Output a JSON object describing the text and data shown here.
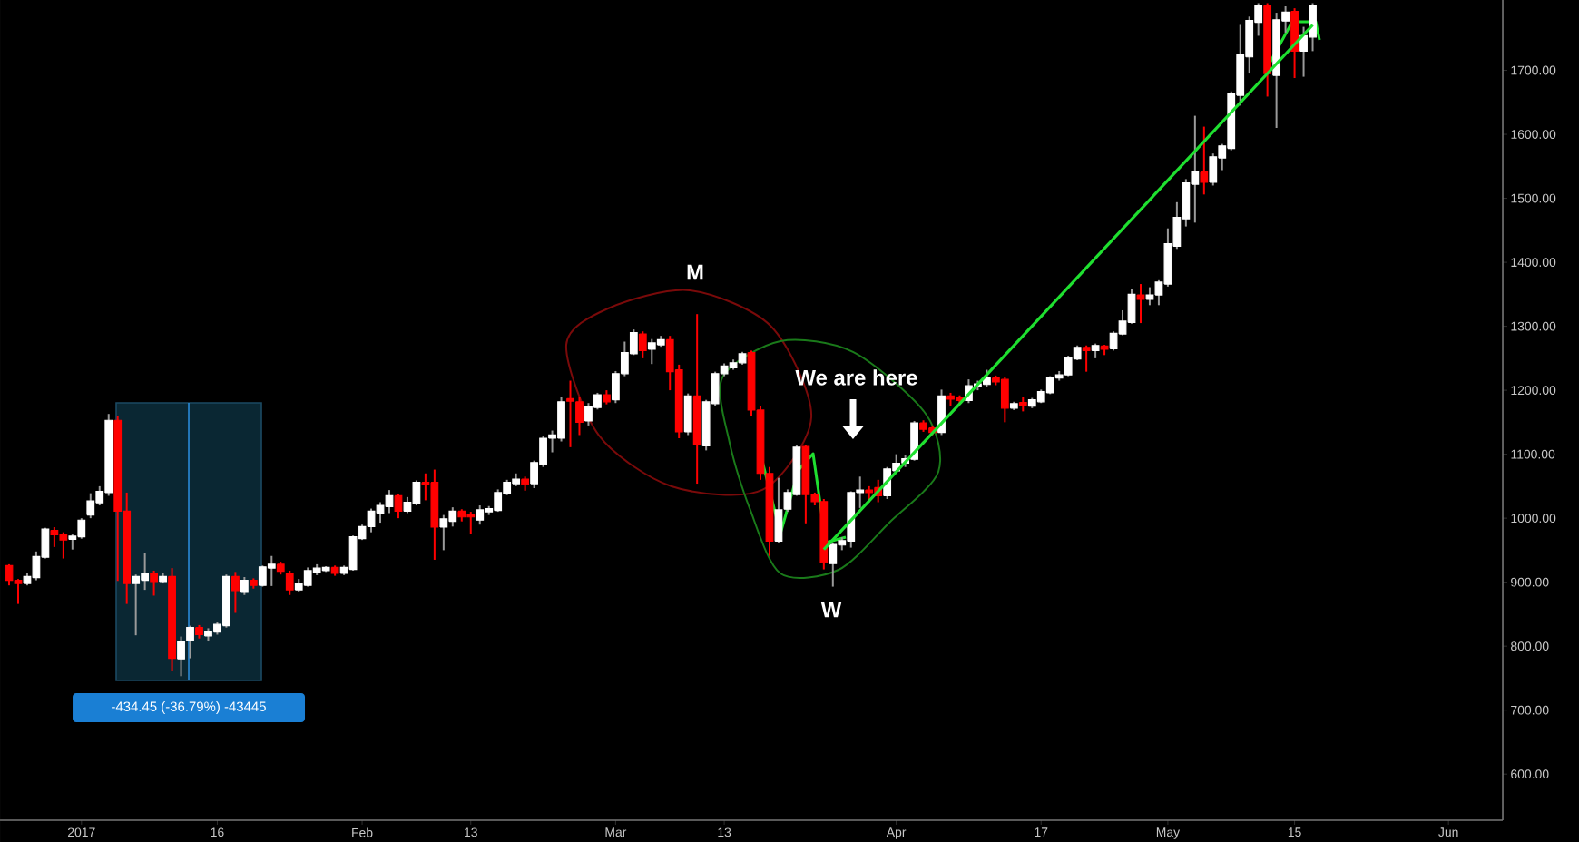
{
  "chart_data": {
    "type": "candlestick",
    "xlim": [
      "2016-12-23",
      "2017-06-07"
    ],
    "ylim": [
      528,
      1810
    ],
    "xticks": [
      {
        "value": "2017-01-01",
        "label": "2017"
      },
      {
        "value": "2017-01-16",
        "label": "16"
      },
      {
        "value": "2017-02-01",
        "label": "Feb"
      },
      {
        "value": "2017-02-13",
        "label": "13"
      },
      {
        "value": "2017-03-01",
        "label": "Mar"
      },
      {
        "value": "2017-03-13",
        "label": "13"
      },
      {
        "value": "2017-04-01",
        "label": "Apr"
      },
      {
        "value": "2017-04-17",
        "label": "17"
      },
      {
        "value": "2017-05-01",
        "label": "May"
      },
      {
        "value": "2017-05-15",
        "label": "15"
      },
      {
        "value": "2017-06-01",
        "label": "Jun"
      }
    ],
    "yticks": [
      {
        "value": 600,
        "label": "600.00"
      },
      {
        "value": 700,
        "label": "700.00"
      },
      {
        "value": 800,
        "label": "800.00"
      },
      {
        "value": 900,
        "label": "900.00"
      },
      {
        "value": 1000,
        "label": "1000.00"
      },
      {
        "value": 1100,
        "label": "1100.00"
      },
      {
        "value": 1200,
        "label": "1200.00"
      },
      {
        "value": 1300,
        "label": "1300.00"
      },
      {
        "value": 1400,
        "label": "1400.00"
      },
      {
        "value": 1500,
        "label": "1500.00"
      },
      {
        "value": 1600,
        "label": "1600.00"
      },
      {
        "value": 1700,
        "label": "1700.00"
      }
    ],
    "series": [
      {
        "x": [
          "2016-12-24",
          "2016-12-25",
          "2016-12-26",
          "2016-12-27",
          "2016-12-28",
          "2016-12-29",
          "2016-12-30",
          "2016-12-31",
          "2017-01-01",
          "2017-01-02",
          "2017-01-03",
          "2017-01-04",
          "2017-01-05",
          "2017-01-06",
          "2017-01-07",
          "2017-01-08",
          "2017-01-09",
          "2017-01-10",
          "2017-01-11",
          "2017-01-12",
          "2017-01-13",
          "2017-01-14",
          "2017-01-15",
          "2017-01-16",
          "2017-01-17",
          "2017-01-18",
          "2017-01-19",
          "2017-01-20",
          "2017-01-21",
          "2017-01-22",
          "2017-01-23",
          "2017-01-24",
          "2017-01-25",
          "2017-01-26",
          "2017-01-27",
          "2017-01-28",
          "2017-01-29",
          "2017-01-30",
          "2017-01-31",
          "2017-02-01",
          "2017-02-02",
          "2017-02-03",
          "2017-02-04",
          "2017-02-05",
          "2017-02-06",
          "2017-02-07",
          "2017-02-08",
          "2017-02-09",
          "2017-02-10",
          "2017-02-11",
          "2017-02-12",
          "2017-02-13",
          "2017-02-14",
          "2017-02-15",
          "2017-02-16",
          "2017-02-17",
          "2017-02-18",
          "2017-02-19",
          "2017-02-20",
          "2017-02-21",
          "2017-02-22",
          "2017-02-23",
          "2017-02-24",
          "2017-02-25",
          "2017-02-26",
          "2017-02-27",
          "2017-02-28",
          "2017-03-01",
          "2017-03-02",
          "2017-03-03",
          "2017-03-04",
          "2017-03-05",
          "2017-03-06",
          "2017-03-07",
          "2017-03-08",
          "2017-03-09",
          "2017-03-10",
          "2017-03-11",
          "2017-03-12",
          "2017-03-13",
          "2017-03-14",
          "2017-03-15",
          "2017-03-16",
          "2017-03-17",
          "2017-03-18",
          "2017-03-19",
          "2017-03-20",
          "2017-03-21",
          "2017-03-22",
          "2017-03-23",
          "2017-03-24",
          "2017-03-25",
          "2017-03-26",
          "2017-03-27",
          "2017-03-28",
          "2017-03-29",
          "2017-03-30",
          "2017-03-31",
          "2017-04-01",
          "2017-04-02",
          "2017-04-03",
          "2017-04-04",
          "2017-04-05",
          "2017-04-06",
          "2017-04-07",
          "2017-04-08",
          "2017-04-09",
          "2017-04-10",
          "2017-04-11",
          "2017-04-12",
          "2017-04-13",
          "2017-04-14",
          "2017-04-15",
          "2017-04-16",
          "2017-04-17",
          "2017-04-18",
          "2017-04-19",
          "2017-04-20",
          "2017-04-21",
          "2017-04-22",
          "2017-04-23",
          "2017-04-24",
          "2017-04-25",
          "2017-04-26",
          "2017-04-27",
          "2017-04-28",
          "2017-04-29",
          "2017-04-30",
          "2017-05-01",
          "2017-05-02",
          "2017-05-03",
          "2017-05-04",
          "2017-05-05",
          "2017-05-06",
          "2017-05-07",
          "2017-05-08",
          "2017-05-09",
          "2017-05-10",
          "2017-05-11",
          "2017-05-12",
          "2017-05-13",
          "2017-05-14",
          "2017-05-15",
          "2017-05-16",
          "2017-05-17"
        ],
        "ohlc": [
          [
            926,
            928,
            895,
            903
          ],
          [
            903,
            905,
            866,
            898
          ],
          [
            898,
            915,
            895,
            909
          ],
          [
            907,
            948,
            903,
            940
          ],
          [
            939,
            985,
            937,
            983
          ],
          [
            981,
            986,
            955,
            974
          ],
          [
            975,
            978,
            937,
            966
          ],
          [
            967,
            976,
            951,
            972
          ],
          [
            971,
            1000,
            968,
            997
          ],
          [
            1005,
            1039,
            1000,
            1027
          ],
          [
            1024,
            1050,
            1020,
            1042
          ],
          [
            1040,
            1163,
            1035,
            1153
          ],
          [
            1153,
            1160,
            902,
            1011
          ],
          [
            1011,
            1040,
            866,
            898
          ],
          [
            898,
            912,
            817,
            909
          ],
          [
            903,
            945,
            888,
            914
          ],
          [
            914,
            918,
            879,
            901
          ],
          [
            901,
            915,
            898,
            909
          ],
          [
            909,
            922,
            761,
            781
          ],
          [
            780,
            815,
            753,
            808
          ],
          [
            808,
            832,
            781,
            829
          ],
          [
            829,
            833,
            812,
            818
          ],
          [
            816,
            828,
            808,
            822
          ],
          [
            822,
            838,
            818,
            834
          ],
          [
            832,
            912,
            829,
            909
          ],
          [
            909,
            916,
            852,
            887
          ],
          [
            884,
            908,
            880,
            903
          ],
          [
            903,
            906,
            890,
            895
          ],
          [
            895,
            926,
            893,
            924
          ],
          [
            922,
            941,
            894,
            928
          ],
          [
            928,
            932,
            912,
            917
          ],
          [
            914,
            918,
            880,
            888
          ],
          [
            888,
            905,
            885,
            898
          ],
          [
            895,
            923,
            893,
            918
          ],
          [
            915,
            928,
            911,
            922
          ],
          [
            918,
            925,
            916,
            923
          ],
          [
            923,
            926,
            910,
            914
          ],
          [
            914,
            926,
            911,
            923
          ],
          [
            920,
            973,
            918,
            971
          ],
          [
            968,
            990,
            966,
            987
          ],
          [
            987,
            1015,
            978,
            1011
          ],
          [
            1008,
            1025,
            993,
            1020
          ],
          [
            1018,
            1044,
            1008,
            1035
          ],
          [
            1035,
            1038,
            1000,
            1011
          ],
          [
            1011,
            1033,
            1008,
            1025
          ],
          [
            1023,
            1059,
            1020,
            1056
          ],
          [
            1056,
            1070,
            1028,
            1052
          ],
          [
            1056,
            1076,
            935,
            986
          ],
          [
            986,
            1005,
            950,
            999
          ],
          [
            995,
            1017,
            987,
            1011
          ],
          [
            1011,
            1014,
            995,
            1002
          ],
          [
            1006,
            1010,
            976,
            1002
          ],
          [
            997,
            1020,
            990,
            1013
          ],
          [
            1010,
            1019,
            1005,
            1015
          ],
          [
            1012,
            1045,
            1010,
            1040
          ],
          [
            1038,
            1060,
            1036,
            1056
          ],
          [
            1054,
            1070,
            1050,
            1061
          ],
          [
            1061,
            1065,
            1043,
            1053
          ],
          [
            1054,
            1090,
            1047,
            1087
          ],
          [
            1084,
            1128,
            1080,
            1125
          ],
          [
            1125,
            1137,
            1103,
            1130
          ],
          [
            1125,
            1190,
            1120,
            1182
          ],
          [
            1187,
            1215,
            1111,
            1183
          ],
          [
            1182,
            1190,
            1130,
            1150
          ],
          [
            1152,
            1180,
            1145,
            1175
          ],
          [
            1173,
            1196,
            1170,
            1193
          ],
          [
            1193,
            1200,
            1178,
            1182
          ],
          [
            1185,
            1230,
            1180,
            1226
          ],
          [
            1226,
            1276,
            1222,
            1259
          ],
          [
            1257,
            1295,
            1255,
            1290
          ],
          [
            1288,
            1292,
            1250,
            1262
          ],
          [
            1264,
            1280,
            1241,
            1274
          ],
          [
            1271,
            1285,
            1268,
            1279
          ],
          [
            1279,
            1285,
            1200,
            1229
          ],
          [
            1232,
            1240,
            1125,
            1135
          ],
          [
            1135,
            1195,
            1130,
            1191
          ],
          [
            1191,
            1319,
            1054,
            1115
          ],
          [
            1113,
            1185,
            1106,
            1182
          ],
          [
            1179,
            1229,
            1176,
            1226
          ],
          [
            1226,
            1242,
            1222,
            1238
          ],
          [
            1235,
            1248,
            1232,
            1243
          ],
          [
            1243,
            1260,
            1240,
            1257
          ],
          [
            1259,
            1262,
            1160,
            1169
          ],
          [
            1169,
            1175,
            1060,
            1070
          ],
          [
            1070,
            1080,
            941,
            964
          ],
          [
            964,
            1063,
            962,
            1013
          ],
          [
            1014,
            1045,
            1010,
            1040
          ],
          [
            1037,
            1115,
            1035,
            1111
          ],
          [
            1112,
            1115,
            992,
            1037
          ],
          [
            1037,
            1040,
            1020,
            1026
          ],
          [
            1026,
            1030,
            920,
            931
          ],
          [
            929,
            962,
            893,
            959
          ],
          [
            958,
            970,
            950,
            965
          ],
          [
            964,
            1042,
            954,
            1040
          ],
          [
            1040,
            1065,
            1016,
            1044
          ],
          [
            1044,
            1050,
            1025,
            1040
          ],
          [
            1048,
            1060,
            1025,
            1035
          ],
          [
            1035,
            1080,
            1030,
            1077
          ],
          [
            1074,
            1100,
            1070,
            1086
          ],
          [
            1086,
            1098,
            1080,
            1093
          ],
          [
            1092,
            1152,
            1090,
            1149
          ],
          [
            1149,
            1153,
            1135,
            1139
          ],
          [
            1141,
            1145,
            1130,
            1134
          ],
          [
            1134,
            1201,
            1130,
            1191
          ],
          [
            1191,
            1196,
            1175,
            1186
          ],
          [
            1189,
            1192,
            1178,
            1184
          ],
          [
            1184,
            1217,
            1180,
            1207
          ],
          [
            1206,
            1215,
            1200,
            1210
          ],
          [
            1209,
            1232,
            1205,
            1219
          ],
          [
            1219,
            1223,
            1208,
            1213
          ],
          [
            1217,
            1220,
            1150,
            1172
          ],
          [
            1172,
            1182,
            1169,
            1179
          ],
          [
            1181,
            1190,
            1167,
            1177
          ],
          [
            1175,
            1188,
            1172,
            1185
          ],
          [
            1182,
            1201,
            1180,
            1198
          ],
          [
            1196,
            1222,
            1194,
            1219
          ],
          [
            1219,
            1230,
            1215,
            1224
          ],
          [
            1224,
            1254,
            1222,
            1251
          ],
          [
            1249,
            1270,
            1247,
            1267
          ],
          [
            1267,
            1270,
            1229,
            1262
          ],
          [
            1262,
            1273,
            1250,
            1270
          ],
          [
            1269,
            1271,
            1255,
            1264
          ],
          [
            1265,
            1292,
            1262,
            1289
          ],
          [
            1288,
            1325,
            1286,
            1308
          ],
          [
            1306,
            1359,
            1304,
            1350
          ],
          [
            1349,
            1366,
            1305,
            1342
          ],
          [
            1342,
            1361,
            1333,
            1349
          ],
          [
            1349,
            1372,
            1333,
            1369
          ],
          [
            1366,
            1453,
            1362,
            1429
          ],
          [
            1425,
            1494,
            1421,
            1470
          ],
          [
            1468,
            1530,
            1456,
            1524
          ],
          [
            1522,
            1629,
            1462,
            1541
          ],
          [
            1541,
            1612,
            1506,
            1525
          ],
          [
            1525,
            1570,
            1520,
            1565
          ],
          [
            1563,
            1585,
            1544,
            1582
          ],
          [
            1578,
            1667,
            1575,
            1664
          ],
          [
            1661,
            1771,
            1645,
            1724
          ],
          [
            1721,
            1784,
            1695,
            1778
          ],
          [
            1775,
            1805,
            1754,
            1801
          ],
          [
            1801,
            1805,
            1659,
            1695
          ],
          [
            1692,
            1790,
            1610,
            1779
          ],
          [
            1777,
            1800,
            1759,
            1791
          ],
          [
            1792,
            1797,
            1688,
            1730
          ],
          [
            1730,
            1768,
            1690,
            1754
          ],
          [
            1752,
            1805,
            1730,
            1801
          ]
        ]
      },
      {
        "type": "line",
        "color": "#1fe030",
        "x": [
          "2017-03-24",
          "2017-05-17"
        ],
        "values": [
          951,
          1771
        ]
      }
    ],
    "annotations": [
      "M",
      "We are here",
      "W",
      "-434.45 (-36.79%) -43445"
    ]
  }
}
